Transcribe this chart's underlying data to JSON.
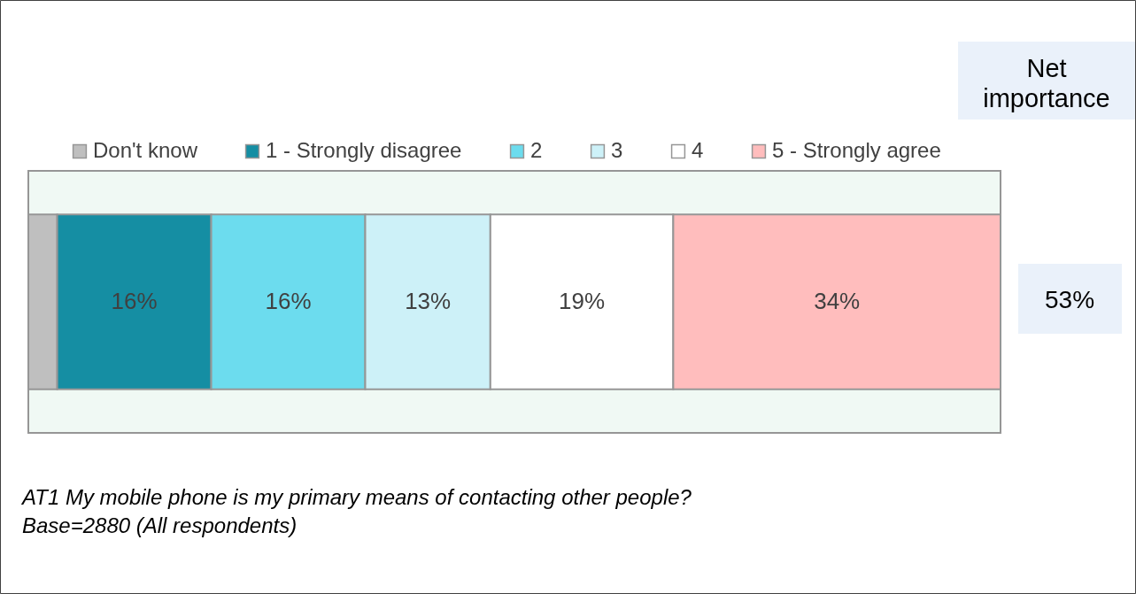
{
  "chart_data": {
    "type": "bar",
    "orientation": "horizontal",
    "stacked": true,
    "categories": [
      null
    ],
    "xlim": [
      0,
      101
    ],
    "tick_labels": false,
    "legend": "top",
    "series": [
      {
        "name": "Don't know",
        "color": "#bfbfbf",
        "values": [
          3
        ],
        "value_labels": [
          null
        ]
      },
      {
        "name": "1 - Strongly disagree",
        "color": "#158ea3",
        "values": [
          16
        ],
        "value_labels": [
          "16%"
        ]
      },
      {
        "name": "2",
        "color": "#6cdcee",
        "values": [
          16
        ],
        "value_labels": [
          "16%"
        ]
      },
      {
        "name": "3",
        "color": "#cdf1f8",
        "values": [
          13
        ],
        "value_labels": [
          "13%"
        ]
      },
      {
        "name": "4",
        "color": "#ffffff",
        "values": [
          19
        ],
        "value_labels": [
          "19%"
        ]
      },
      {
        "name": "5 - Strongly agree",
        "color": "#ffbdbd",
        "values": [
          34
        ],
        "value_labels": [
          "34%"
        ]
      }
    ],
    "annotations": [
      "Net importance",
      "53%",
      "AT1 My mobile phone is my primary means of contacting other people?",
      "Base=2880 (All respondents)"
    ]
  }
}
